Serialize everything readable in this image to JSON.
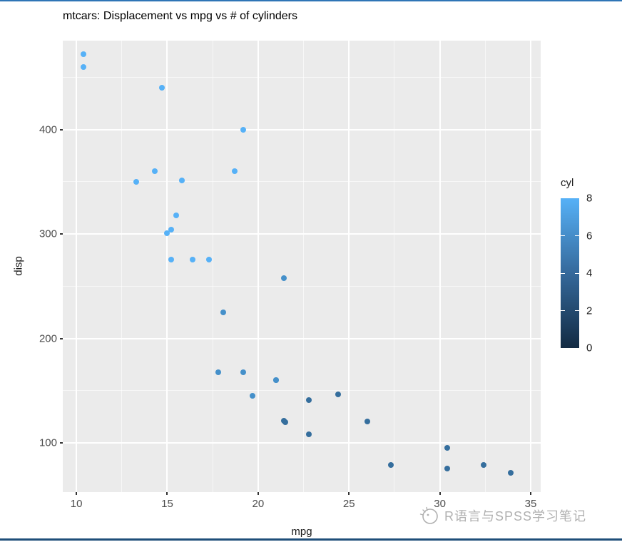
{
  "chart_data": {
    "type": "scatter",
    "title": "mtcars: Displacement vs mpg vs # of cylinders",
    "xlabel": "mpg",
    "ylabel": "disp",
    "x_ticks": [
      10,
      15,
      20,
      25,
      30,
      35
    ],
    "x_minor_ticks": [
      12.5,
      17.5,
      22.5,
      27.5,
      32.5
    ],
    "y_ticks": [
      100,
      200,
      300,
      400
    ],
    "y_minor_ticks": [
      150,
      250,
      350,
      450
    ],
    "xlim": [
      9.25,
      35.55
    ],
    "ylim": [
      53,
      485
    ],
    "grid": true,
    "panel_background": "#EBEBEB",
    "gridline_color": "#FFFFFF",
    "legend": {
      "title": "cyl",
      "position": "right",
      "limits": [
        0,
        8
      ],
      "tick_labels": [
        8,
        6,
        4,
        2,
        0
      ],
      "tick_marks": [
        6,
        4,
        2
      ],
      "gradient_low": "#132B43",
      "gradient_mid": "#35699B",
      "gradient_high": "#56B1F7"
    },
    "points": [
      {
        "mpg": 21.0,
        "disp": 160.0,
        "cyl": 6
      },
      {
        "mpg": 21.0,
        "disp": 160.0,
        "cyl": 6
      },
      {
        "mpg": 22.8,
        "disp": 108.0,
        "cyl": 4
      },
      {
        "mpg": 21.4,
        "disp": 258.0,
        "cyl": 6
      },
      {
        "mpg": 18.7,
        "disp": 360.0,
        "cyl": 8
      },
      {
        "mpg": 18.1,
        "disp": 225.0,
        "cyl": 6
      },
      {
        "mpg": 14.3,
        "disp": 360.0,
        "cyl": 8
      },
      {
        "mpg": 24.4,
        "disp": 146.7,
        "cyl": 4
      },
      {
        "mpg": 22.8,
        "disp": 140.8,
        "cyl": 4
      },
      {
        "mpg": 19.2,
        "disp": 167.6,
        "cyl": 6
      },
      {
        "mpg": 17.8,
        "disp": 167.6,
        "cyl": 6
      },
      {
        "mpg": 16.4,
        "disp": 275.8,
        "cyl": 8
      },
      {
        "mpg": 17.3,
        "disp": 275.8,
        "cyl": 8
      },
      {
        "mpg": 15.2,
        "disp": 275.8,
        "cyl": 8
      },
      {
        "mpg": 10.4,
        "disp": 472.0,
        "cyl": 8
      },
      {
        "mpg": 10.4,
        "disp": 460.0,
        "cyl": 8
      },
      {
        "mpg": 14.7,
        "disp": 440.0,
        "cyl": 8
      },
      {
        "mpg": 32.4,
        "disp": 78.7,
        "cyl": 4
      },
      {
        "mpg": 30.4,
        "disp": 75.7,
        "cyl": 4
      },
      {
        "mpg": 33.9,
        "disp": 71.1,
        "cyl": 4
      },
      {
        "mpg": 21.5,
        "disp": 120.1,
        "cyl": 4
      },
      {
        "mpg": 15.5,
        "disp": 318.0,
        "cyl": 8
      },
      {
        "mpg": 15.2,
        "disp": 304.0,
        "cyl": 8
      },
      {
        "mpg": 13.3,
        "disp": 350.0,
        "cyl": 8
      },
      {
        "mpg": 19.2,
        "disp": 400.0,
        "cyl": 8
      },
      {
        "mpg": 27.3,
        "disp": 79.0,
        "cyl": 4
      },
      {
        "mpg": 26.0,
        "disp": 120.3,
        "cyl": 4
      },
      {
        "mpg": 30.4,
        "disp": 95.1,
        "cyl": 4
      },
      {
        "mpg": 15.8,
        "disp": 351.0,
        "cyl": 8
      },
      {
        "mpg": 19.7,
        "disp": 145.0,
        "cyl": 6
      },
      {
        "mpg": 15.0,
        "disp": 301.0,
        "cyl": 8
      },
      {
        "mpg": 21.4,
        "disp": 121.0,
        "cyl": 4
      }
    ]
  },
  "watermark": {
    "text": "R语言与SPSS学习笔记"
  },
  "colors": {
    "top_border": "#2E75B6",
    "bottom_border": "#1F4E79",
    "tick_text": "#4D4D4D",
    "axis_title_text": "#1A1A1A",
    "plot_title_text": "#000000",
    "watermark_text": "#B0B0B0"
  }
}
